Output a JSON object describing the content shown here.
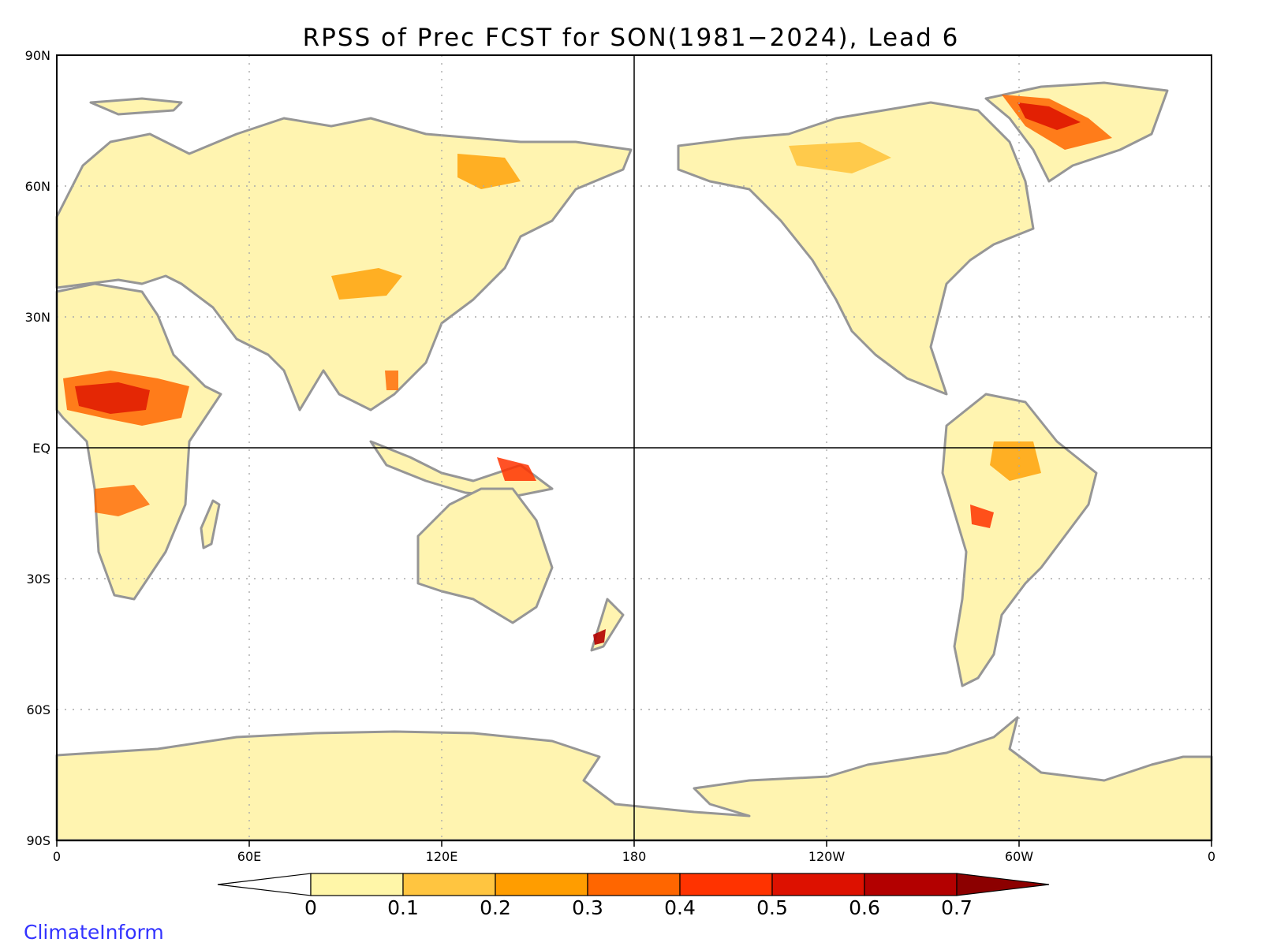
{
  "title": "RPSS of Prec FCST for SON(1981−2024), Lead 6",
  "lat_labels": [
    "90N",
    "60N",
    "30N",
    "EQ",
    "30S",
    "60S",
    "90S"
  ],
  "lon_labels": [
    "0",
    "60E",
    "120E",
    "180",
    "120W",
    "60W",
    "0"
  ],
  "colorbar": {
    "ticks": [
      "0",
      "0.1",
      "0.2",
      "0.3",
      "0.4",
      "0.5",
      "0.6",
      "0.7"
    ],
    "colors": [
      "#ffffff",
      "#fff6a8",
      "#ffc540",
      "#ff9d00",
      "#ff6600",
      "#ff3300",
      "#dd1100",
      "#b30000",
      "#8c0000"
    ]
  },
  "watermark": "ClimateInform",
  "colors": {
    "land_outline": "#969696",
    "border": "#000000",
    "grid": "#aaaaaa"
  }
}
